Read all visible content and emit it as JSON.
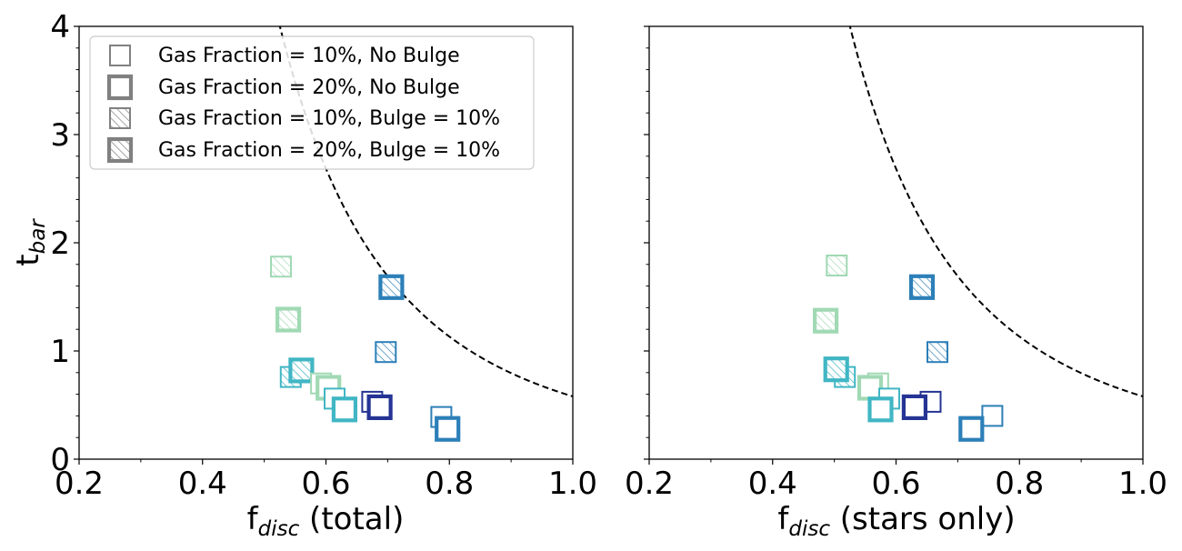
{
  "chart_data": [
    {
      "type": "scatter",
      "panel": "left",
      "title": "",
      "xlabel_main": "f",
      "xlabel_sub": "disc",
      "xlabel_rest": " (total)",
      "ylabel_main": "t",
      "ylabel_sub": "bar",
      "xlim": [
        0.2,
        1.0
      ],
      "ylim": [
        0,
        4
      ],
      "xticks": [
        "0.2",
        "0.4",
        "0.6",
        "0.8",
        "1.0"
      ],
      "yticks": [
        "0",
        "1",
        "2",
        "3",
        "4"
      ],
      "legend_position": "top-left",
      "curve": {
        "style": "dashed",
        "form": "t = a / f^3",
        "a": 0.58
      },
      "points": [
        {
          "x": 0.527,
          "y": 1.78,
          "color": "#a1d9b4",
          "gas": 10,
          "bulge": 10
        },
        {
          "x": 0.539,
          "y": 1.29,
          "color": "#a1d9b4",
          "gas": 20,
          "bulge": 10
        },
        {
          "x": 0.706,
          "y": 1.59,
          "color": "#2c7fb8",
          "gas": 20,
          "bulge": 10
        },
        {
          "x": 0.697,
          "y": 0.99,
          "color": "#2c7fb8",
          "gas": 10,
          "bulge": 10
        },
        {
          "x": 0.543,
          "y": 0.76,
          "color": "#41b6c4",
          "gas": 10,
          "bulge": 10
        },
        {
          "x": 0.56,
          "y": 0.82,
          "color": "#41b6c4",
          "gas": 20,
          "bulge": 10
        },
        {
          "x": 0.592,
          "y": 0.7,
          "color": "#a1d9b4",
          "gas": 10,
          "bulge": 0
        },
        {
          "x": 0.604,
          "y": 0.66,
          "color": "#a1d9b4",
          "gas": 20,
          "bulge": 0
        },
        {
          "x": 0.614,
          "y": 0.56,
          "color": "#41b6c4",
          "gas": 10,
          "bulge": 0
        },
        {
          "x": 0.63,
          "y": 0.46,
          "color": "#41b6c4",
          "gas": 20,
          "bulge": 0
        },
        {
          "x": 0.675,
          "y": 0.53,
          "color": "#253494",
          "gas": 10,
          "bulge": 0
        },
        {
          "x": 0.687,
          "y": 0.48,
          "color": "#253494",
          "gas": 20,
          "bulge": 0
        },
        {
          "x": 0.787,
          "y": 0.39,
          "color": "#2c7fb8",
          "gas": 10,
          "bulge": 0
        },
        {
          "x": 0.797,
          "y": 0.28,
          "color": "#2c7fb8",
          "gas": 20,
          "bulge": 0
        }
      ]
    },
    {
      "type": "scatter",
      "panel": "right",
      "title": "",
      "xlabel_main": "f",
      "xlabel_sub": "disc",
      "xlabel_rest": " (stars only)",
      "xlim": [
        0.2,
        1.0
      ],
      "ylim": [
        0,
        4
      ],
      "xticks": [
        "0.2",
        "0.4",
        "0.6",
        "0.8",
        "1.0"
      ],
      "curve": {
        "style": "dashed",
        "form": "t = a / f^3",
        "a": 0.58
      },
      "points": [
        {
          "x": 0.504,
          "y": 1.79,
          "color": "#a1d9b4",
          "gas": 10,
          "bulge": 10
        },
        {
          "x": 0.486,
          "y": 1.28,
          "color": "#a1d9b4",
          "gas": 20,
          "bulge": 10
        },
        {
          "x": 0.642,
          "y": 1.59,
          "color": "#2c7fb8",
          "gas": 20,
          "bulge": 10
        },
        {
          "x": 0.667,
          "y": 0.99,
          "color": "#2c7fb8",
          "gas": 10,
          "bulge": 10
        },
        {
          "x": 0.517,
          "y": 0.76,
          "color": "#41b6c4",
          "gas": 10,
          "bulge": 10
        },
        {
          "x": 0.503,
          "y": 0.83,
          "color": "#41b6c4",
          "gas": 20,
          "bulge": 10
        },
        {
          "x": 0.571,
          "y": 0.7,
          "color": "#a1d9b4",
          "gas": 10,
          "bulge": 0
        },
        {
          "x": 0.558,
          "y": 0.66,
          "color": "#a1d9b4",
          "gas": 20,
          "bulge": 0
        },
        {
          "x": 0.589,
          "y": 0.56,
          "color": "#41b6c4",
          "gas": 10,
          "bulge": 0
        },
        {
          "x": 0.575,
          "y": 0.46,
          "color": "#41b6c4",
          "gas": 20,
          "bulge": 0
        },
        {
          "x": 0.656,
          "y": 0.53,
          "color": "#253494",
          "gas": 10,
          "bulge": 0
        },
        {
          "x": 0.63,
          "y": 0.48,
          "color": "#253494",
          "gas": 20,
          "bulge": 0
        },
        {
          "x": 0.756,
          "y": 0.4,
          "color": "#2c7fb8",
          "gas": 10,
          "bulge": 0
        },
        {
          "x": 0.722,
          "y": 0.28,
          "color": "#2c7fb8",
          "gas": 20,
          "bulge": 0
        }
      ]
    }
  ],
  "legend": {
    "items": [
      {
        "label": "Gas Fraction = 10%, No Bulge",
        "gas": 10,
        "bulge": 0
      },
      {
        "label": "Gas Fraction = 20%, No Bulge",
        "gas": 20,
        "bulge": 0
      },
      {
        "label": "Gas Fraction = 10%, Bulge = 10%",
        "gas": 10,
        "bulge": 10
      },
      {
        "label": "Gas Fraction = 20%, Bulge = 10%",
        "gas": 20,
        "bulge": 10
      }
    ],
    "marker_color": "#808080"
  },
  "colors": {
    "curve": "#000000",
    "axes": "#000000"
  }
}
